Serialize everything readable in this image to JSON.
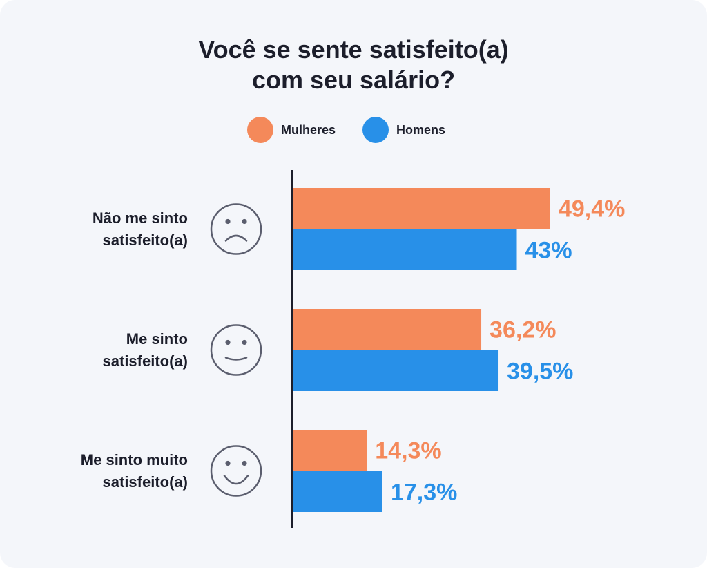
{
  "chart_data": {
    "type": "bar",
    "orientation": "horizontal",
    "title": [
      "Você se sente satisfeito(a)",
      "com seu salário?"
    ],
    "categories": [
      [
        "Não me sinto",
        "satisfeito(a)"
      ],
      [
        "Me sinto",
        "satisfeito(a)"
      ],
      [
        "Me sinto muito",
        "satisfeito(a)"
      ]
    ],
    "category_icons": [
      "sad-face-icon",
      "smile-face-icon",
      "happy-face-icon"
    ],
    "series": [
      {
        "name": "Mulheres",
        "color": "#f4895a",
        "values": [
          49.4,
          36.2,
          14.3
        ],
        "labels": [
          "49,4%",
          "36,2%",
          "14,3%"
        ]
      },
      {
        "name": "Homens",
        "color": "#2890e8",
        "values": [
          43,
          39.5,
          17.3
        ],
        "labels": [
          "43%",
          "39,5%",
          "17,3%"
        ]
      }
    ],
    "xlim": [
      0,
      100
    ],
    "grid": false,
    "legend_position": "top-center"
  }
}
